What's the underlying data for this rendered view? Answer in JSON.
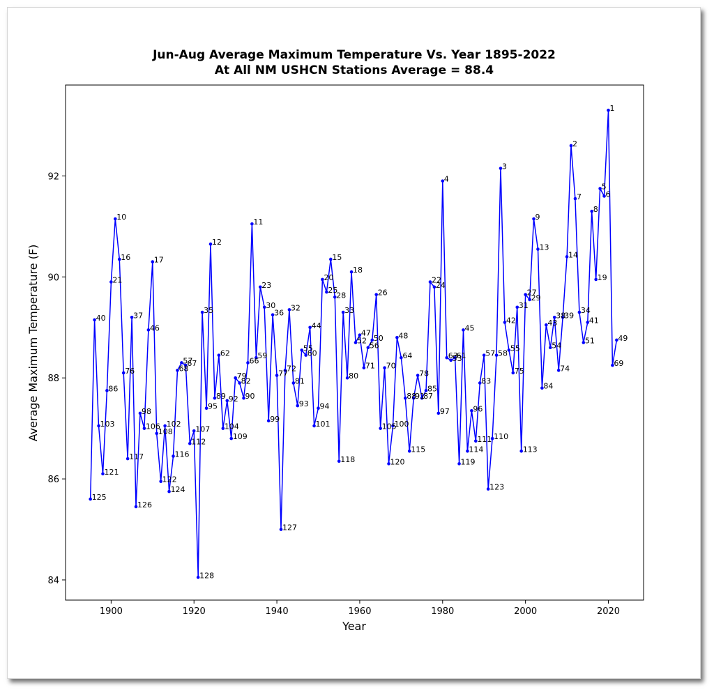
{
  "chart_data": {
    "type": "line",
    "title": "Jun-Aug Average Maximum Temperature Vs. Year 1895-2022",
    "subtitle": "At All NM USHCN Stations Average = 88.4",
    "xlabel": "Year",
    "ylabel": "Average Maximum Temperature (F)",
    "xlim": [
      1889,
      2028.5
    ],
    "ylim": [
      83.6,
      93.8
    ],
    "xticks": [
      1900,
      1920,
      1940,
      1960,
      1980,
      2000,
      2020
    ],
    "yticks": [
      84,
      86,
      88,
      90,
      92
    ],
    "grid": false,
    "series_color": "#0000ff",
    "series": [
      {
        "values": [
          [
            1895,
            85.6,
            125
          ],
          [
            1896,
            89.15,
            40
          ],
          [
            1897,
            87.05,
            103
          ],
          [
            1898,
            86.1,
            121
          ],
          [
            1899,
            87.75,
            86
          ],
          [
            1900,
            89.9,
            21
          ],
          [
            1901,
            91.15,
            10
          ],
          [
            1902,
            90.35,
            16
          ],
          [
            1903,
            88.1,
            76
          ],
          [
            1904,
            86.4,
            117
          ],
          [
            1905,
            89.2,
            37
          ],
          [
            1906,
            85.45,
            126
          ],
          [
            1907,
            87.3,
            98
          ],
          [
            1908,
            87.0,
            106
          ],
          [
            1909,
            88.95,
            46
          ],
          [
            1910,
            90.3,
            17
          ],
          [
            1911,
            86.9,
            108
          ],
          [
            1912,
            85.95,
            122
          ],
          [
            1913,
            87.05,
            102
          ],
          [
            1914,
            85.75,
            124
          ],
          [
            1915,
            86.45,
            116
          ],
          [
            1916,
            88.15,
            68
          ],
          [
            1917,
            88.3,
            57
          ],
          [
            1918,
            88.25,
            67
          ],
          [
            1919,
            86.7,
            112
          ],
          [
            1920,
            86.95,
            107
          ],
          [
            1921,
            84.05,
            128
          ],
          [
            1922,
            89.3,
            35
          ],
          [
            1923,
            87.4,
            95
          ],
          [
            1924,
            90.65,
            12
          ],
          [
            1925,
            87.6,
            89
          ],
          [
            1926,
            88.45,
            62
          ],
          [
            1927,
            87.0,
            104
          ],
          [
            1928,
            87.55,
            92
          ],
          [
            1929,
            86.8,
            109
          ],
          [
            1930,
            88.0,
            79
          ],
          [
            1931,
            87.9,
            82
          ],
          [
            1932,
            87.6,
            90
          ],
          [
            1933,
            88.3,
            66
          ],
          [
            1934,
            91.05,
            11
          ],
          [
            1935,
            88.4,
            59
          ],
          [
            1936,
            89.8,
            23
          ],
          [
            1937,
            89.4,
            30
          ],
          [
            1938,
            87.15,
            99
          ],
          [
            1939,
            89.25,
            36
          ],
          [
            1940,
            88.05,
            77
          ],
          [
            1941,
            85.0,
            127
          ],
          [
            1942,
            88.15,
            72
          ],
          [
            1943,
            89.35,
            32
          ],
          [
            1944,
            87.9,
            81
          ],
          [
            1945,
            87.45,
            93
          ],
          [
            1946,
            88.55,
            55
          ],
          [
            1947,
            88.45,
            60
          ],
          [
            1948,
            89.0,
            44
          ],
          [
            1949,
            87.05,
            101
          ],
          [
            1950,
            87.4,
            94
          ],
          [
            1951,
            89.95,
            20
          ],
          [
            1952,
            89.7,
            25
          ],
          [
            1953,
            90.35,
            15
          ],
          [
            1954,
            89.6,
            28
          ],
          [
            1955,
            86.35,
            118
          ],
          [
            1956,
            89.3,
            33
          ],
          [
            1957,
            88.0,
            80
          ],
          [
            1958,
            90.1,
            18
          ],
          [
            1959,
            88.7,
            52
          ],
          [
            1960,
            88.85,
            47
          ],
          [
            1961,
            88.2,
            71
          ],
          [
            1962,
            88.6,
            56
          ],
          [
            1963,
            88.75,
            50
          ],
          [
            1964,
            89.65,
            26
          ],
          [
            1965,
            87.0,
            105
          ],
          [
            1966,
            88.2,
            70
          ],
          [
            1967,
            86.3,
            120
          ],
          [
            1968,
            87.05,
            100
          ],
          [
            1969,
            88.8,
            48
          ],
          [
            1970,
            88.4,
            64
          ],
          [
            1971,
            87.6,
            88
          ],
          [
            1972,
            86.55,
            115
          ],
          [
            1973,
            87.6,
            91
          ],
          [
            1974,
            88.05,
            78
          ],
          [
            1975,
            87.6,
            87
          ],
          [
            1976,
            87.75,
            85
          ],
          [
            1977,
            89.9,
            22
          ],
          [
            1978,
            89.8,
            24
          ],
          [
            1979,
            87.3,
            97
          ],
          [
            1980,
            91.9,
            4
          ],
          [
            1981,
            88.4,
            63
          ],
          [
            1982,
            88.35,
            53
          ],
          [
            1983,
            88.4,
            61
          ],
          [
            1984,
            86.3,
            119
          ],
          [
            1985,
            88.95,
            45
          ],
          [
            1986,
            86.55,
            114
          ],
          [
            1987,
            87.35,
            96
          ],
          [
            1988,
            86.75,
            111
          ],
          [
            1989,
            87.9,
            83
          ],
          [
            1990,
            88.45,
            57
          ],
          [
            1991,
            85.8,
            123
          ],
          [
            1992,
            86.8,
            110
          ],
          [
            1993,
            88.45,
            58
          ],
          [
            1994,
            92.15,
            3
          ],
          [
            1995,
            89.1,
            42
          ],
          [
            1996,
            88.55,
            55
          ],
          [
            1997,
            88.1,
            75
          ],
          [
            1998,
            89.4,
            31
          ],
          [
            1999,
            86.55,
            113
          ],
          [
            2000,
            89.65,
            27
          ],
          [
            2001,
            89.55,
            29
          ],
          [
            2002,
            91.15,
            9
          ],
          [
            2003,
            90.55,
            13
          ],
          [
            2004,
            87.8,
            84
          ],
          [
            2005,
            89.05,
            43
          ],
          [
            2006,
            88.6,
            54
          ],
          [
            2007,
            89.2,
            38
          ],
          [
            2008,
            88.15,
            74
          ],
          [
            2009,
            89.2,
            39
          ],
          [
            2010,
            90.4,
            14
          ],
          [
            2011,
            92.6,
            2
          ],
          [
            2012,
            91.55,
            7
          ],
          [
            2013,
            89.3,
            34
          ],
          [
            2014,
            88.7,
            51
          ],
          [
            2015,
            89.1,
            41
          ],
          [
            2016,
            91.3,
            8
          ],
          [
            2017,
            89.95,
            19
          ],
          [
            2018,
            91.75,
            5
          ],
          [
            2019,
            91.6,
            6
          ],
          [
            2020,
            93.3,
            1
          ],
          [
            2021,
            88.25,
            69
          ],
          [
            2022,
            88.75,
            49
          ]
        ]
      }
    ]
  }
}
